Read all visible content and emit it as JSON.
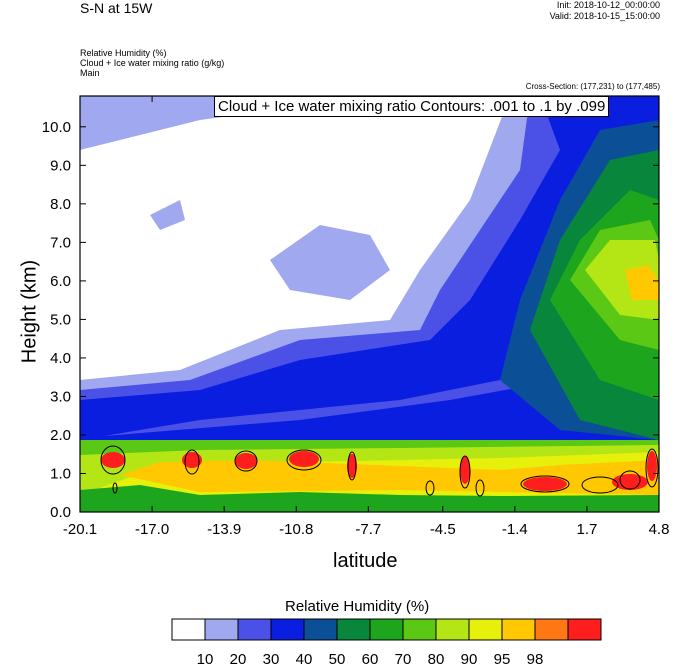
{
  "header": {
    "title": "S-N at 15W",
    "init": "Init: 2018-10-12_00:00:00",
    "valid": "Valid: 2018-10-15_15:00:00",
    "field1": "Relative Humidity   (%)",
    "field2": "Cloud + Ice water mixing ratio   (g/kg)",
    "field3": "Main",
    "cross_section": "Cross-Section: (177,231) to (177,485)"
  },
  "chart_data": {
    "type": "heatmap",
    "contour_label": "Cloud + Ice water mixing ratio Contours: .001 to .1 by .099",
    "xlabel": "latitude",
    "ylabel": "Height (km)",
    "x_ticks": [
      "-20.1",
      "-17.0",
      "-13.9",
      "-10.8",
      "-7.7",
      "-4.5",
      "-1.4",
      "1.7",
      "4.8"
    ],
    "y_ticks": [
      "0.0",
      "1.0",
      "2.0",
      "3.0",
      "4.0",
      "5.0",
      "6.0",
      "7.0",
      "8.0",
      "9.0",
      "10.0"
    ],
    "xlim": [
      -20.1,
      4.8
    ],
    "ylim": [
      0,
      10.8
    ],
    "colorbar": {
      "title": "Relative Humidity  (%)",
      "levels": [
        "10",
        "20",
        "30",
        "40",
        "50",
        "60",
        "70",
        "80",
        "90",
        "95",
        "98"
      ],
      "colors": [
        "#ffffff",
        "#a0a8f0",
        "#4b50e6",
        "#0a1ee0",
        "#0b5096",
        "#08873c",
        "#1ea51e",
        "#5ac814",
        "#b4e616",
        "#e6f00a",
        "#ffc800",
        "#ff7814",
        "#ff1e1e"
      ]
    }
  }
}
